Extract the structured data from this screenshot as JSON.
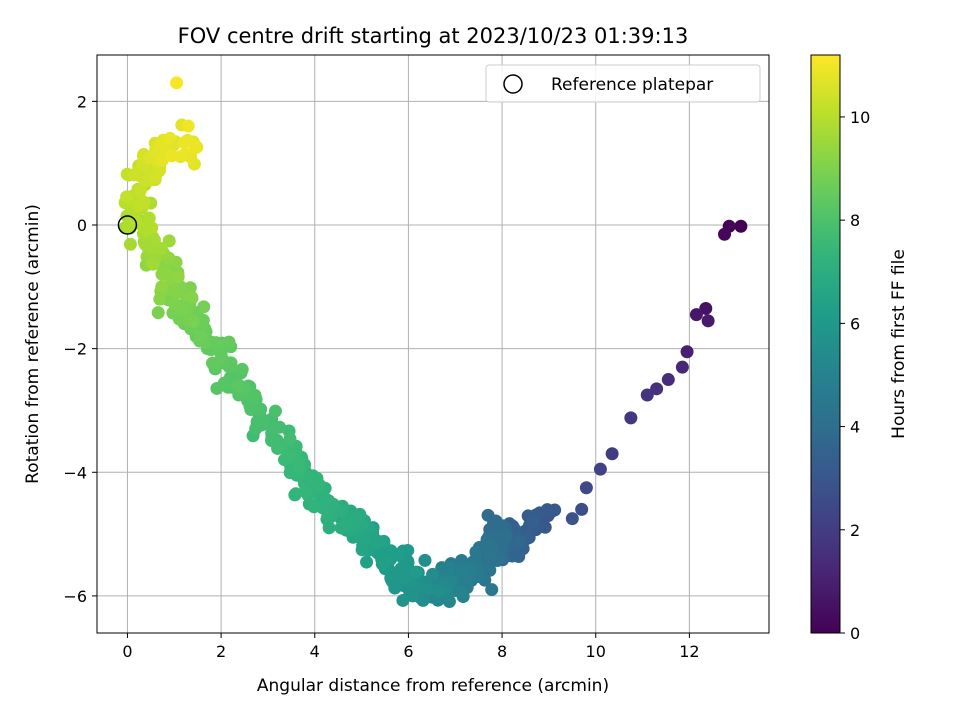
{
  "chart_data": {
    "type": "scatter",
    "title": "FOV centre drift starting at 2023/10/23 01:39:13",
    "xlabel": "Angular distance from reference (arcmin)",
    "ylabel": "Rotation from reference (arcmin)",
    "xlim": [
      -0.65,
      13.7
    ],
    "ylim": [
      -6.6,
      2.75
    ],
    "x_ticks": [
      0,
      2,
      4,
      6,
      8,
      10,
      12
    ],
    "y_ticks": [
      -6,
      -4,
      -2,
      0,
      2
    ],
    "x_tick_labels": [
      "0",
      "2",
      "4",
      "6",
      "8",
      "10",
      "12"
    ],
    "y_tick_labels": [
      "−6",
      "−4",
      "−2",
      "0",
      "2"
    ],
    "grid": true,
    "legend": {
      "position": "top-right",
      "entries": [
        "Reference platepar"
      ]
    },
    "reference_point": {
      "x": 0,
      "y": 0
    },
    "colorbar": {
      "label": "Hours from first FF file",
      "colormap": "viridis",
      "range": [
        0,
        11.2
      ],
      "ticks": [
        0,
        2,
        4,
        6,
        8,
        10
      ],
      "tick_labels": [
        "0",
        "2",
        "4",
        "6",
        "8",
        "10"
      ]
    },
    "series_profile": {
      "description": "drift trajectory control points [hours, x, y]",
      "points": [
        [
          0.0,
          13.1,
          -0.02
        ],
        [
          0.1,
          12.85,
          -0.02
        ],
        [
          0.2,
          12.75,
          -0.15
        ],
        [
          0.5,
          12.35,
          -1.35
        ],
        [
          0.7,
          12.15,
          -1.45
        ],
        [
          0.8,
          12.4,
          -1.55
        ],
        [
          1.0,
          11.95,
          -2.05
        ],
        [
          1.2,
          11.85,
          -2.3
        ],
        [
          1.4,
          11.55,
          -2.5
        ],
        [
          1.6,
          11.3,
          -2.65
        ],
        [
          1.7,
          11.1,
          -2.75
        ],
        [
          1.8,
          10.75,
          -3.12
        ],
        [
          2.0,
          10.35,
          -3.7
        ],
        [
          2.2,
          10.1,
          -3.95
        ],
        [
          2.4,
          9.8,
          -4.25
        ],
        [
          2.6,
          9.7,
          -4.6
        ],
        [
          2.8,
          9.5,
          -4.75
        ],
        [
          3.1,
          8.7,
          -4.75
        ],
        [
          3.4,
          8.35,
          -5.05
        ],
        [
          3.7,
          8.0,
          -5.25
        ],
        [
          4.0,
          7.8,
          -5.0
        ],
        [
          4.3,
          7.55,
          -5.45
        ],
        [
          4.6,
          7.35,
          -5.6
        ],
        [
          4.9,
          7.0,
          -5.8
        ],
        [
          5.2,
          6.6,
          -5.85
        ],
        [
          5.5,
          6.3,
          -5.9
        ],
        [
          5.8,
          5.95,
          -5.7
        ],
        [
          6.1,
          5.6,
          -5.4
        ],
        [
          6.4,
          5.2,
          -5.1
        ],
        [
          6.7,
          4.85,
          -4.9
        ],
        [
          7.0,
          4.4,
          -4.6
        ],
        [
          7.3,
          3.9,
          -4.2
        ],
        [
          7.6,
          3.3,
          -3.6
        ],
        [
          7.9,
          2.8,
          -3.0
        ],
        [
          8.2,
          2.3,
          -2.5
        ],
        [
          8.5,
          1.8,
          -1.9
        ],
        [
          8.8,
          1.3,
          -1.45
        ],
        [
          9.1,
          0.95,
          -0.95
        ],
        [
          9.4,
          0.6,
          -0.55
        ],
        [
          9.7,
          0.35,
          -0.1
        ],
        [
          10.0,
          0.2,
          0.35
        ],
        [
          10.3,
          0.35,
          0.8
        ],
        [
          10.6,
          0.7,
          1.2
        ],
        [
          10.9,
          1.3,
          1.3
        ],
        [
          11.2,
          1.05,
          2.3
        ]
      ]
    }
  }
}
